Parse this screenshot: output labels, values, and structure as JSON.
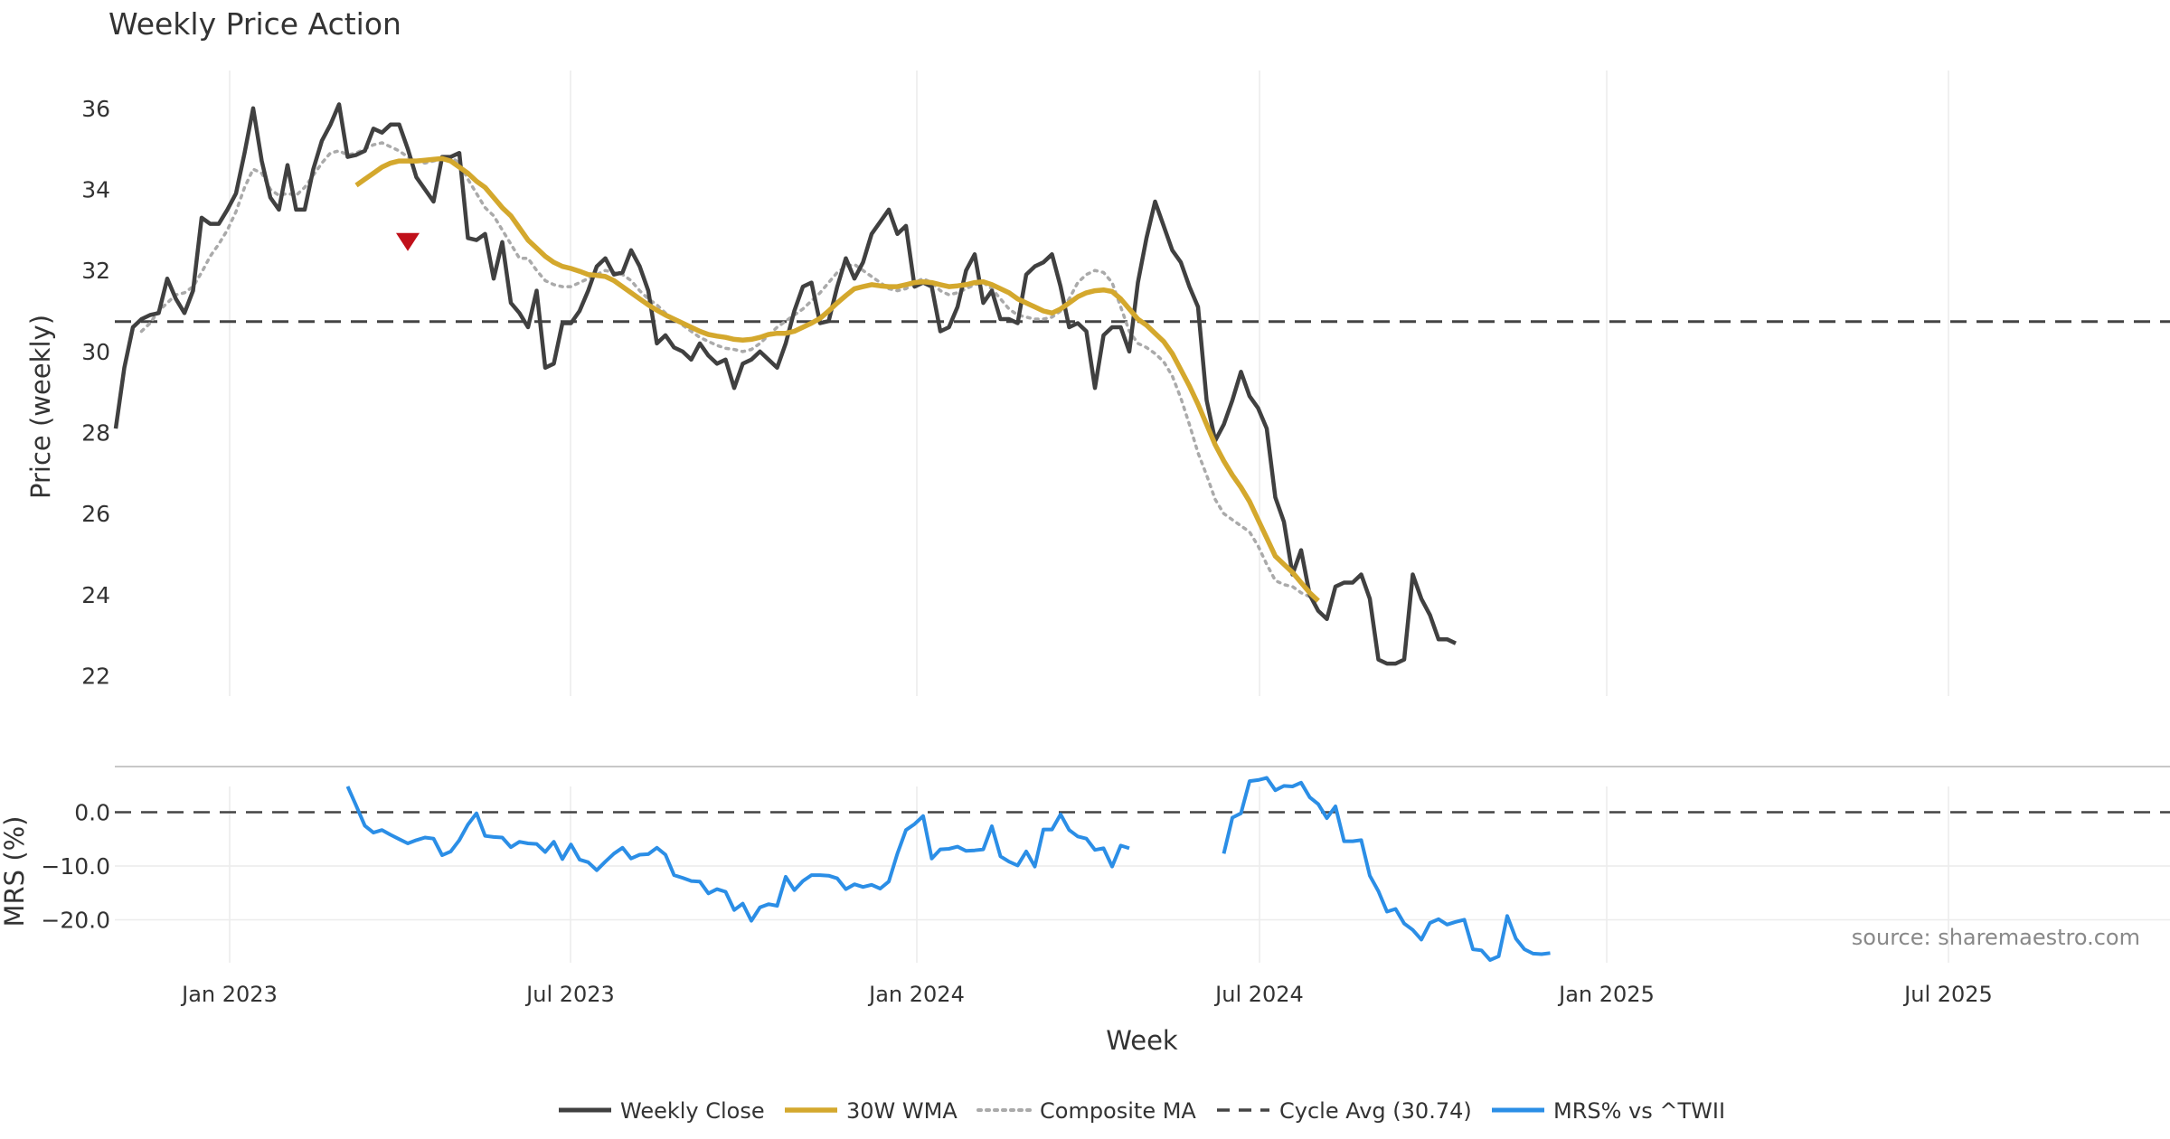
{
  "chart_data": {
    "type": "line",
    "title": "Weekly Price Action",
    "xlabel": "Week",
    "source": "source: sharemaestro.com",
    "x_ticks": [
      "Jan 2023",
      "Jul 2023",
      "Jan 2024",
      "Jul 2024",
      "Jan 2025",
      "Jul 2025"
    ],
    "cycle_avg": 30.74,
    "price_panel": {
      "ylabel": "Price (weekly)",
      "ylim": [
        21.5,
        37.0
      ],
      "yticks": [
        "22",
        "24",
        "26",
        "28",
        "30",
        "32",
        "34",
        "36"
      ],
      "ytick_values": [
        22,
        24,
        26,
        28,
        30,
        32,
        34,
        36
      ]
    },
    "mrs_panel": {
      "ylabel": "MRS (%)",
      "ylim": [
        -28,
        8.5
      ],
      "yticks": [
        "0.0",
        "−10.0",
        "−20.0"
      ],
      "ytick_values": [
        0,
        -10,
        -20
      ]
    },
    "sell_marker": {
      "week": 34,
      "value": 32.7
    },
    "series": [
      {
        "name": "Weekly Close",
        "color": "#404040",
        "style": "solid",
        "start": 0,
        "values": [
          28.1,
          29.6,
          30.6,
          30.8,
          30.9,
          30.95,
          31.8,
          31.3,
          30.95,
          31.5,
          33.3,
          33.15,
          33.15,
          33.5,
          33.9,
          34.9,
          36.0,
          34.7,
          33.8,
          33.5,
          34.6,
          33.5,
          33.5,
          34.5,
          35.2,
          35.6,
          36.1,
          34.8,
          34.85,
          34.95,
          35.5,
          35.4,
          35.6,
          35.6,
          35.0,
          34.3,
          34.0,
          33.7,
          34.8,
          34.8,
          34.9,
          32.8,
          32.75,
          32.9,
          31.8,
          32.7,
          31.2,
          30.95,
          30.6,
          31.5,
          29.6,
          29.7,
          30.7,
          30.7,
          31.0,
          31.5,
          32.1,
          32.3,
          31.9,
          31.95,
          32.5,
          32.1,
          31.5,
          30.2,
          30.4,
          30.1,
          30.0,
          29.8,
          30.2,
          29.9,
          29.7,
          29.8,
          29.1,
          29.7,
          29.8,
          30.0,
          29.8,
          29.6,
          30.2,
          31.0,
          31.6,
          31.7,
          30.7,
          30.75,
          31.6,
          32.3,
          31.8,
          32.2,
          32.9,
          33.2,
          33.5,
          32.9,
          33.1,
          31.6,
          31.7,
          31.6,
          30.5,
          30.6,
          31.1,
          32.0,
          32.4,
          31.2,
          31.5,
          30.8,
          30.8,
          30.7,
          31.9,
          32.1,
          32.2,
          32.4,
          31.6,
          30.6,
          30.7,
          30.5,
          29.1,
          30.4,
          30.6,
          30.6,
          30.0,
          31.7,
          32.8,
          33.7,
          33.1,
          32.5,
          32.2,
          31.6,
          31.1,
          28.8,
          27.8,
          28.2,
          28.8,
          29.5,
          28.9,
          28.6,
          28.1,
          26.4,
          25.8,
          24.5,
          25.1,
          24.0,
          23.6,
          23.4,
          24.2,
          24.3,
          24.3,
          24.5,
          23.9,
          22.4,
          22.3,
          22.3,
          22.4,
          24.5,
          23.9,
          23.5,
          22.9,
          22.9,
          22.8
        ]
      },
      {
        "name": "30W WMA",
        "color": "#d4a82d",
        "style": "solid",
        "start": 28,
        "values": [
          34.1,
          34.25,
          34.4,
          34.55,
          34.65,
          34.7,
          34.7,
          34.7,
          34.72,
          34.74,
          34.76,
          34.7,
          34.55,
          34.4,
          34.2,
          34.05,
          33.8,
          33.55,
          33.35,
          33.05,
          32.75,
          32.55,
          32.35,
          32.2,
          32.1,
          32.05,
          31.98,
          31.9,
          31.88,
          31.85,
          31.75,
          31.6,
          31.45,
          31.3,
          31.15,
          31.02,
          30.9,
          30.8,
          30.7,
          30.6,
          30.5,
          30.42,
          30.38,
          30.35,
          30.3,
          30.28,
          30.3,
          30.35,
          30.42,
          30.45,
          30.45,
          30.5,
          30.6,
          30.7,
          30.82,
          31.0,
          31.2,
          31.38,
          31.55,
          31.6,
          31.65,
          31.62,
          31.6,
          31.6,
          31.65,
          31.7,
          31.72,
          31.7,
          31.65,
          31.6,
          31.62,
          31.65,
          31.7,
          31.72,
          31.65,
          31.55,
          31.45,
          31.3,
          31.2,
          31.1,
          31.0,
          30.95,
          31.05,
          31.2,
          31.35,
          31.45,
          31.5,
          31.52,
          31.48,
          31.3,
          31.05,
          30.8,
          30.65,
          30.45,
          30.25,
          29.95,
          29.55,
          29.15,
          28.7,
          28.2,
          27.7,
          27.3,
          26.95,
          26.65,
          26.3,
          25.85,
          25.4,
          24.95,
          24.75,
          24.55,
          24.3,
          24.05,
          23.85
        ]
      },
      {
        "name": "Composite MA",
        "color": "#aaaaaa",
        "style": "dotted",
        "start": 3,
        "values": [
          30.5,
          30.7,
          31.0,
          31.2,
          31.4,
          31.45,
          31.6,
          31.95,
          32.35,
          32.65,
          33.0,
          33.45,
          34.05,
          34.5,
          34.4,
          34.0,
          33.85,
          33.9,
          33.85,
          34.05,
          34.35,
          34.65,
          34.9,
          34.95,
          34.85,
          34.9,
          35.0,
          35.1,
          35.15,
          35.05,
          34.95,
          34.8,
          34.7,
          34.65,
          34.7,
          34.75,
          34.8,
          34.65,
          34.25,
          33.9,
          33.55,
          33.35,
          33.0,
          32.65,
          32.3,
          32.3,
          32.0,
          31.75,
          31.65,
          31.6,
          31.6,
          31.7,
          31.8,
          31.9,
          32.0,
          31.95,
          31.9,
          31.75,
          31.5,
          31.3,
          31.15,
          30.95,
          30.8,
          30.65,
          30.5,
          30.35,
          30.25,
          30.15,
          30.08,
          30.05,
          30.0,
          30.05,
          30.2,
          30.4,
          30.6,
          30.75,
          30.9,
          31.05,
          31.25,
          31.45,
          31.7,
          31.95,
          32.1,
          32.15,
          32.0,
          31.85,
          31.7,
          31.55,
          31.5,
          31.55,
          31.7,
          31.8,
          31.7,
          31.5,
          31.4,
          31.45,
          31.55,
          31.65,
          31.7,
          31.55,
          31.3,
          31.05,
          30.9,
          30.85,
          30.8,
          30.8,
          30.85,
          31.0,
          31.3,
          31.7,
          31.9,
          32.0,
          31.95,
          31.7,
          31.1,
          30.5,
          30.2,
          30.1,
          29.95,
          29.75,
          29.4,
          28.85,
          28.2,
          27.5,
          26.95,
          26.35,
          26.0,
          25.85,
          25.7,
          25.55,
          25.2,
          24.75,
          24.35,
          24.25,
          24.2,
          24.05,
          23.95,
          23.8
        ]
      },
      {
        "name": "Cycle Avg (30.74)",
        "color": "#444444",
        "style": "dashed",
        "value": 30.74
      },
      {
        "name": "MRS% vs ^TWII",
        "color": "#2b8ee6",
        "style": "solid",
        "start": 27,
        "segments": [
          {
            "offset": 0,
            "values": [
              4.8,
              1.2,
              -2.5,
              -3.8,
              -3.3,
              -4.2,
              -5.0,
              -5.8,
              -5.2,
              -4.7,
              -4.9,
              -8.0,
              -7.3,
              -5.2,
              -2.3,
              -0.2,
              -4.4,
              -4.6,
              -4.7,
              -6.5,
              -5.5,
              -5.8,
              -5.9,
              -7.4,
              -5.5,
              -8.7,
              -6.0,
              -8.8,
              -9.3,
              -10.8,
              -9.2,
              -7.7,
              -6.6,
              -8.6,
              -7.9,
              -7.8,
              -6.6,
              -7.9,
              -11.7,
              -12.2,
              -12.8,
              -12.9,
              -15.1,
              -14.3,
              -14.8,
              -18.2,
              -17.0,
              -20.2,
              -17.7,
              -17.1,
              -17.4,
              -12.0,
              -14.5,
              -12.8,
              -11.7,
              -11.7,
              -11.8,
              -12.3,
              -14.3,
              -13.4,
              -13.9,
              -13.5,
              -14.2,
              -12.9,
              -7.7,
              -3.3,
              -2.2,
              -0.7,
              -8.6,
              -6.9,
              -6.8,
              -6.4,
              -7.2,
              -7.1,
              -6.9,
              -2.6,
              -8.2,
              -9.2,
              -9.9,
              -7.3,
              -10.1,
              -3.2,
              -3.2,
              -0.4,
              -3.3,
              -4.5,
              -4.9,
              -7.0,
              -6.7,
              -10.1,
              -6.2,
              -6.7
            ]
          },
          {
            "offset": 102,
            "values": [
              -7.7,
              -1.0,
              -0.2,
              5.8,
              6.0,
              6.4,
              4.1,
              4.9,
              4.8,
              5.5,
              2.8,
              1.5,
              -1.1,
              1.1,
              -5.4,
              -5.4,
              -5.2,
              -11.8,
              -14.7,
              -18.5,
              -18.0,
              -20.7,
              -21.9,
              -23.7,
              -20.6,
              -19.9,
              -20.9,
              -20.4,
              -20.0,
              -25.5,
              -25.7,
              -27.5,
              -26.8,
              -19.3,
              -23.5,
              -25.5,
              -26.3,
              -26.4,
              -26.2
            ]
          }
        ]
      }
    ],
    "legend": [
      "Weekly Close",
      "30W WMA",
      "Composite MA",
      "Cycle Avg (30.74)",
      "MRS% vs ^TWII"
    ]
  }
}
